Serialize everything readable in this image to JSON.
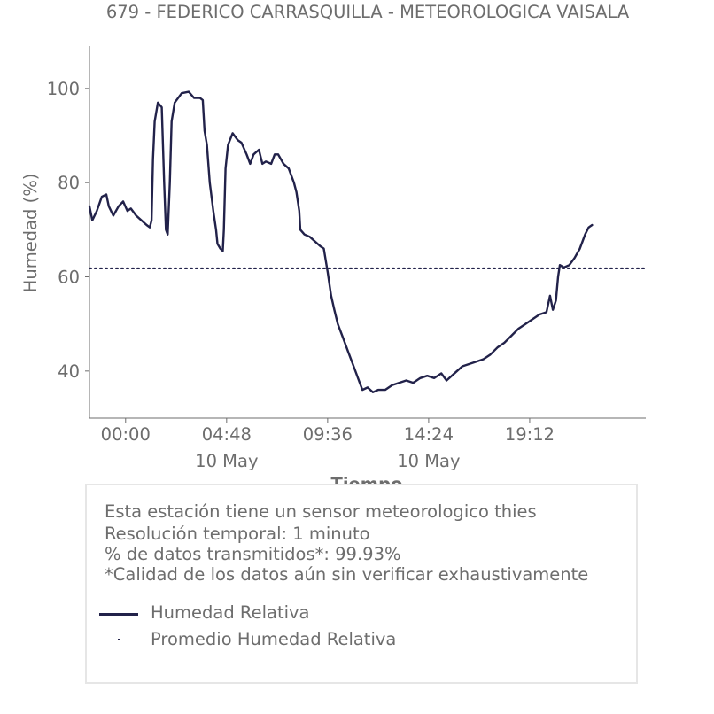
{
  "chart_data": {
    "type": "line",
    "title": "679 - FEDERICO CARRASQUILLA - METEOROLOGICA VAISALA",
    "xlabel": "Tiempo",
    "ylabel": "Humedad (%)",
    "ylim": [
      30,
      109
    ],
    "yticks": [
      40,
      60,
      80,
      100
    ],
    "xlim": [
      "-01:43",
      "24:43"
    ],
    "xticks": [
      {
        "t": "00:00",
        "label": "00:00",
        "date": ""
      },
      {
        "t": "04:48",
        "label": "04:48",
        "date": "10 May"
      },
      {
        "t": "09:36",
        "label": "09:36",
        "date": ""
      },
      {
        "t": "14:24",
        "label": "14:24",
        "date": "10 May"
      },
      {
        "t": "19:12",
        "label": "19:12",
        "date": ""
      }
    ],
    "grid": false,
    "series": [
      {
        "name": "Humedad Relativa",
        "style": "solid",
        "color": "#22224a",
        "points": [
          [
            "-01:43",
            75
          ],
          [
            "-01:35",
            72
          ],
          [
            "-01:22",
            74
          ],
          [
            "-01:08",
            77
          ],
          [
            "-00:55",
            77.5
          ],
          [
            "-00:48",
            75
          ],
          [
            "-00:35",
            73
          ],
          [
            "-00:20",
            75
          ],
          [
            "-00:07",
            76
          ],
          [
            "00:05",
            74
          ],
          [
            "00:15",
            74.5
          ],
          [
            "00:30",
            73
          ],
          [
            "00:45",
            72
          ],
          [
            "01:00",
            71
          ],
          [
            "01:09",
            70.5
          ],
          [
            "01:14",
            72
          ],
          [
            "01:18",
            85
          ],
          [
            "01:23",
            93
          ],
          [
            "01:32",
            97
          ],
          [
            "01:43",
            96
          ],
          [
            "01:50",
            80
          ],
          [
            "01:55",
            70
          ],
          [
            "02:00",
            69
          ],
          [
            "02:06",
            80
          ],
          [
            "02:11",
            93
          ],
          [
            "02:20",
            97
          ],
          [
            "02:40",
            99
          ],
          [
            "03:00",
            99.3
          ],
          [
            "03:15",
            98
          ],
          [
            "03:32",
            98
          ],
          [
            "03:40",
            97.5
          ],
          [
            "03:45",
            91
          ],
          [
            "03:52",
            88
          ],
          [
            "04:00",
            80
          ],
          [
            "04:10",
            74
          ],
          [
            "04:18",
            70
          ],
          [
            "04:22",
            67
          ],
          [
            "04:30",
            66
          ],
          [
            "04:37",
            65.5
          ],
          [
            "04:40",
            70
          ],
          [
            "04:45",
            83
          ],
          [
            "04:52",
            88
          ],
          [
            "05:05",
            90.5
          ],
          [
            "05:20",
            89
          ],
          [
            "05:30",
            88.5
          ],
          [
            "05:45",
            86
          ],
          [
            "05:55",
            84
          ],
          [
            "06:05",
            86
          ],
          [
            "06:20",
            87
          ],
          [
            "06:30",
            84
          ],
          [
            "06:40",
            84.5
          ],
          [
            "06:55",
            84
          ],
          [
            "07:05",
            86
          ],
          [
            "07:15",
            86
          ],
          [
            "07:30",
            84
          ],
          [
            "07:45",
            83
          ],
          [
            "08:00",
            80
          ],
          [
            "08:07",
            78
          ],
          [
            "08:15",
            74
          ],
          [
            "08:18",
            70
          ],
          [
            "08:30",
            69
          ],
          [
            "08:45",
            68.5
          ],
          [
            "09:00",
            67.5
          ],
          [
            "09:15",
            66.5
          ],
          [
            "09:25",
            66
          ],
          [
            "09:36",
            61
          ],
          [
            "09:46",
            56
          ],
          [
            "09:55",
            53
          ],
          [
            "10:05",
            50
          ],
          [
            "10:20",
            47
          ],
          [
            "10:35",
            44
          ],
          [
            "10:50",
            41
          ],
          [
            "11:05",
            38
          ],
          [
            "11:15",
            36
          ],
          [
            "11:30",
            36.5
          ],
          [
            "11:45",
            35.5
          ],
          [
            "12:00",
            36
          ],
          [
            "12:20",
            36
          ],
          [
            "12:40",
            37
          ],
          [
            "13:00",
            37.5
          ],
          [
            "13:20",
            38
          ],
          [
            "13:40",
            37.5
          ],
          [
            "14:00",
            38.5
          ],
          [
            "14:20",
            39
          ],
          [
            "14:40",
            38.5
          ],
          [
            "15:00",
            39.5
          ],
          [
            "15:15",
            38
          ],
          [
            "15:30",
            39
          ],
          [
            "15:45",
            40
          ],
          [
            "16:00",
            41
          ],
          [
            "16:20",
            41.5
          ],
          [
            "16:40",
            42
          ],
          [
            "17:00",
            42.5
          ],
          [
            "17:20",
            43.5
          ],
          [
            "17:40",
            45
          ],
          [
            "18:00",
            46
          ],
          [
            "18:20",
            47.5
          ],
          [
            "18:40",
            49
          ],
          [
            "19:00",
            50
          ],
          [
            "19:20",
            51
          ],
          [
            "19:40",
            52
          ],
          [
            "20:00",
            52.5
          ],
          [
            "20:10",
            56
          ],
          [
            "20:18",
            53
          ],
          [
            "20:27",
            55
          ],
          [
            "20:33",
            60
          ],
          [
            "20:38",
            62.5
          ],
          [
            "20:50",
            62
          ],
          [
            "21:05",
            62.5
          ],
          [
            "21:20",
            64
          ],
          [
            "21:35",
            66
          ],
          [
            "21:50",
            69
          ],
          [
            "22:00",
            70.5
          ],
          [
            "22:10",
            71
          ]
        ]
      },
      {
        "name": "Promedio Humedad Relativa",
        "style": "dotted",
        "color": "#22224a",
        "value": 61.8
      }
    ]
  },
  "info": {
    "line1": "Esta estación tiene un sensor meteorologico thies",
    "line2": "Resolución temporal: 1 minuto",
    "line3": "% de datos transmitidos*: 99.93%",
    "line4": "*Calidad de los datos aún sin verificar exhaustivamente"
  },
  "legend": {
    "item1": "Humedad Relativa",
    "item2": "Promedio Humedad Relativa"
  }
}
